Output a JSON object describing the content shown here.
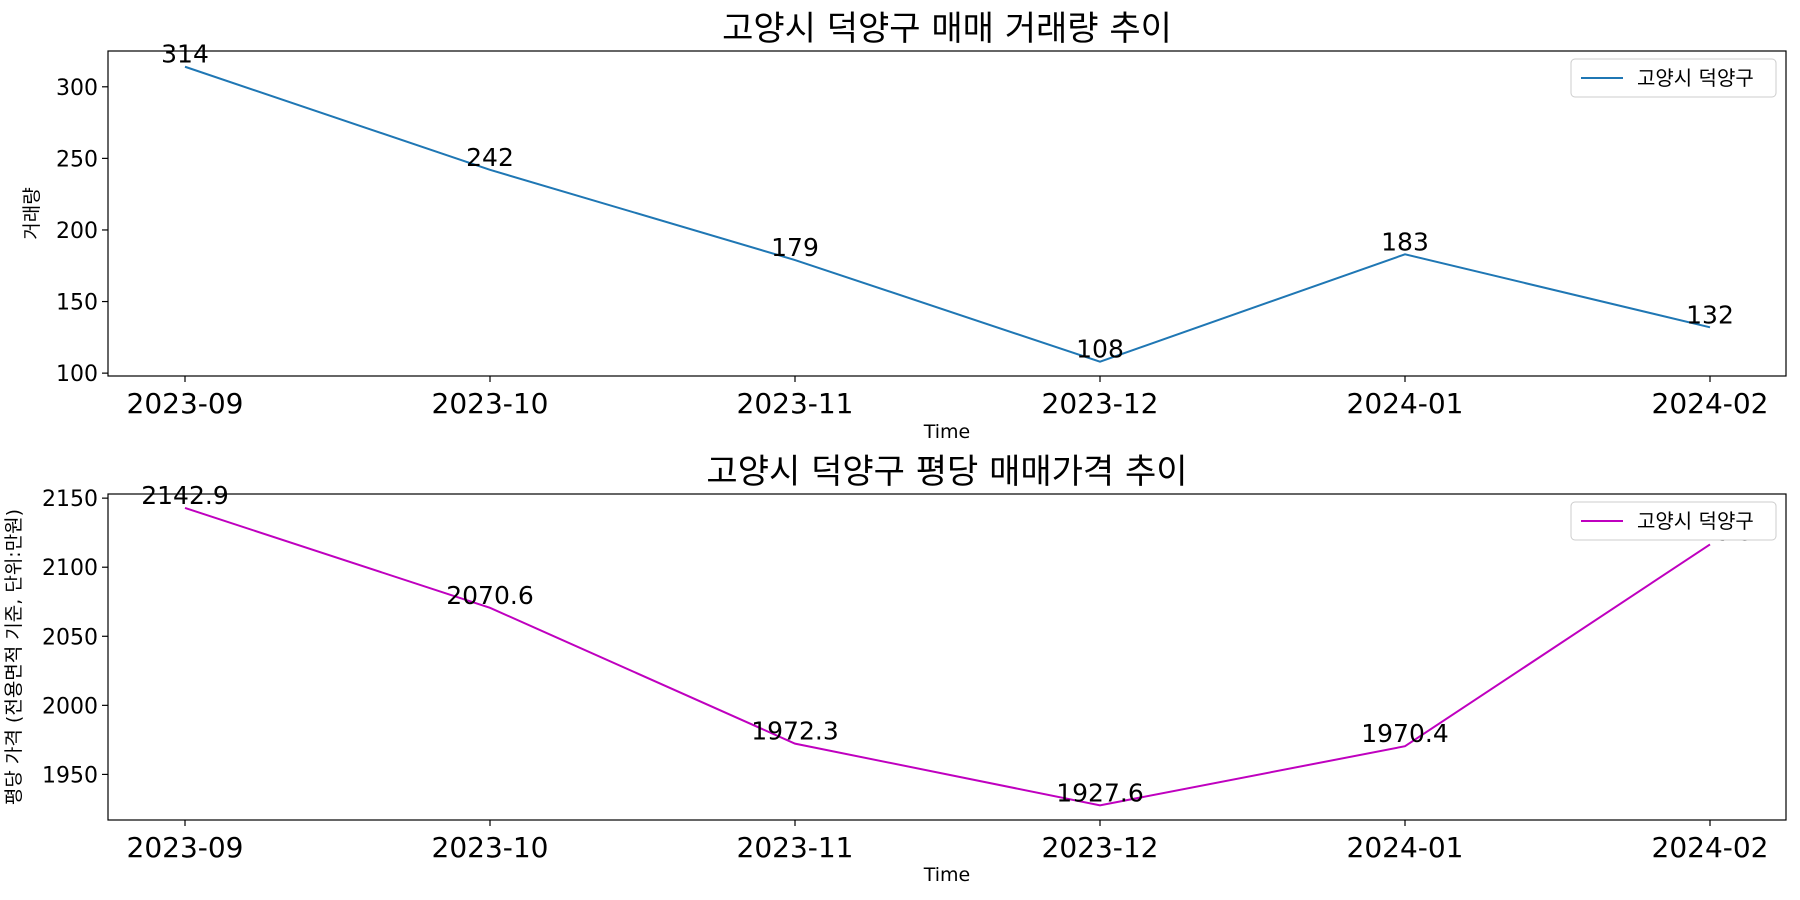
{
  "chart_data": [
    {
      "type": "line",
      "title": "고양시 덕양구 매매 거래량 추이",
      "xlabel": "Time",
      "ylabel": "거래량",
      "categories": [
        "2023-09",
        "2023-10",
        "2023-11",
        "2023-12",
        "2024-01",
        "2024-02"
      ],
      "yticks": [
        100,
        150,
        200,
        250,
        300
      ],
      "ylim": [
        98,
        325
      ],
      "series": [
        {
          "name": "고양시 덕양구",
          "color": "#1f77b4",
          "values": [
            314,
            242,
            179,
            108,
            183,
            132
          ],
          "labels": [
            "314",
            "242",
            "179",
            "108",
            "183",
            "132"
          ]
        }
      ],
      "legend": "top-right",
      "grid": false
    },
    {
      "type": "line",
      "title": "고양시 덕양구 평당 매매가격 추이",
      "xlabel": "Time",
      "ylabel": "평당 가격 (전용면적 기준, 단위:만원)",
      "categories": [
        "2023-09",
        "2023-10",
        "2023-11",
        "2023-12",
        "2024-01",
        "2024-02"
      ],
      "yticks": [
        1950,
        2000,
        2050,
        2100,
        2150
      ],
      "ylim": [
        1917,
        2153
      ],
      "series": [
        {
          "name": "고양시 덕양구",
          "color": "#bf00bf",
          "values": [
            2142.9,
            2070.6,
            1972.3,
            1927.6,
            1970.4,
            2116.5
          ],
          "labels": [
            "2142.9",
            "2070.6",
            "1972.3",
            "1927.6",
            "1970.4",
            "2116.5"
          ]
        }
      ],
      "legend": "top-right",
      "grid": false
    }
  ]
}
